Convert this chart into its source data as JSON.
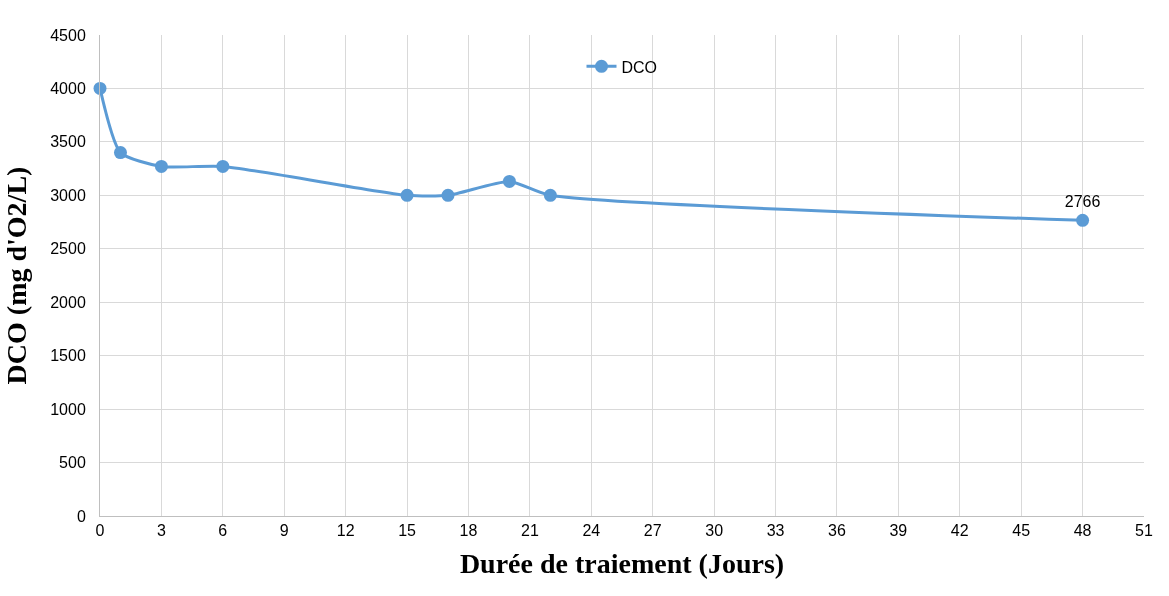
{
  "chart_data": {
    "type": "line",
    "xlabel": "Durée de traiement (Jours)",
    "ylabel": "DCO (mg d'O2/L)",
    "x": [
      0,
      1,
      3,
      6,
      15,
      17,
      20,
      22,
      48
    ],
    "series": [
      {
        "name": "DCO",
        "color": "#5b9bd5",
        "values": [
          4000,
          3400,
          3270,
          3270,
          3000,
          3000,
          3130,
          3000,
          2766
        ],
        "value_labels": [
          null,
          null,
          null,
          null,
          null,
          null,
          null,
          null,
          "2766"
        ]
      }
    ],
    "xlim": [
      0,
      51
    ],
    "xticks": [
      0,
      3,
      6,
      9,
      12,
      15,
      18,
      21,
      24,
      27,
      30,
      33,
      36,
      39,
      42,
      45,
      48,
      51
    ],
    "ylim": [
      0,
      4500
    ],
    "yticks": [
      0,
      500,
      1000,
      1500,
      2000,
      2500,
      3000,
      3500,
      4000,
      4500
    ],
    "grid": true,
    "legend": "top",
    "marker": "circle",
    "line_style": "solid"
  }
}
